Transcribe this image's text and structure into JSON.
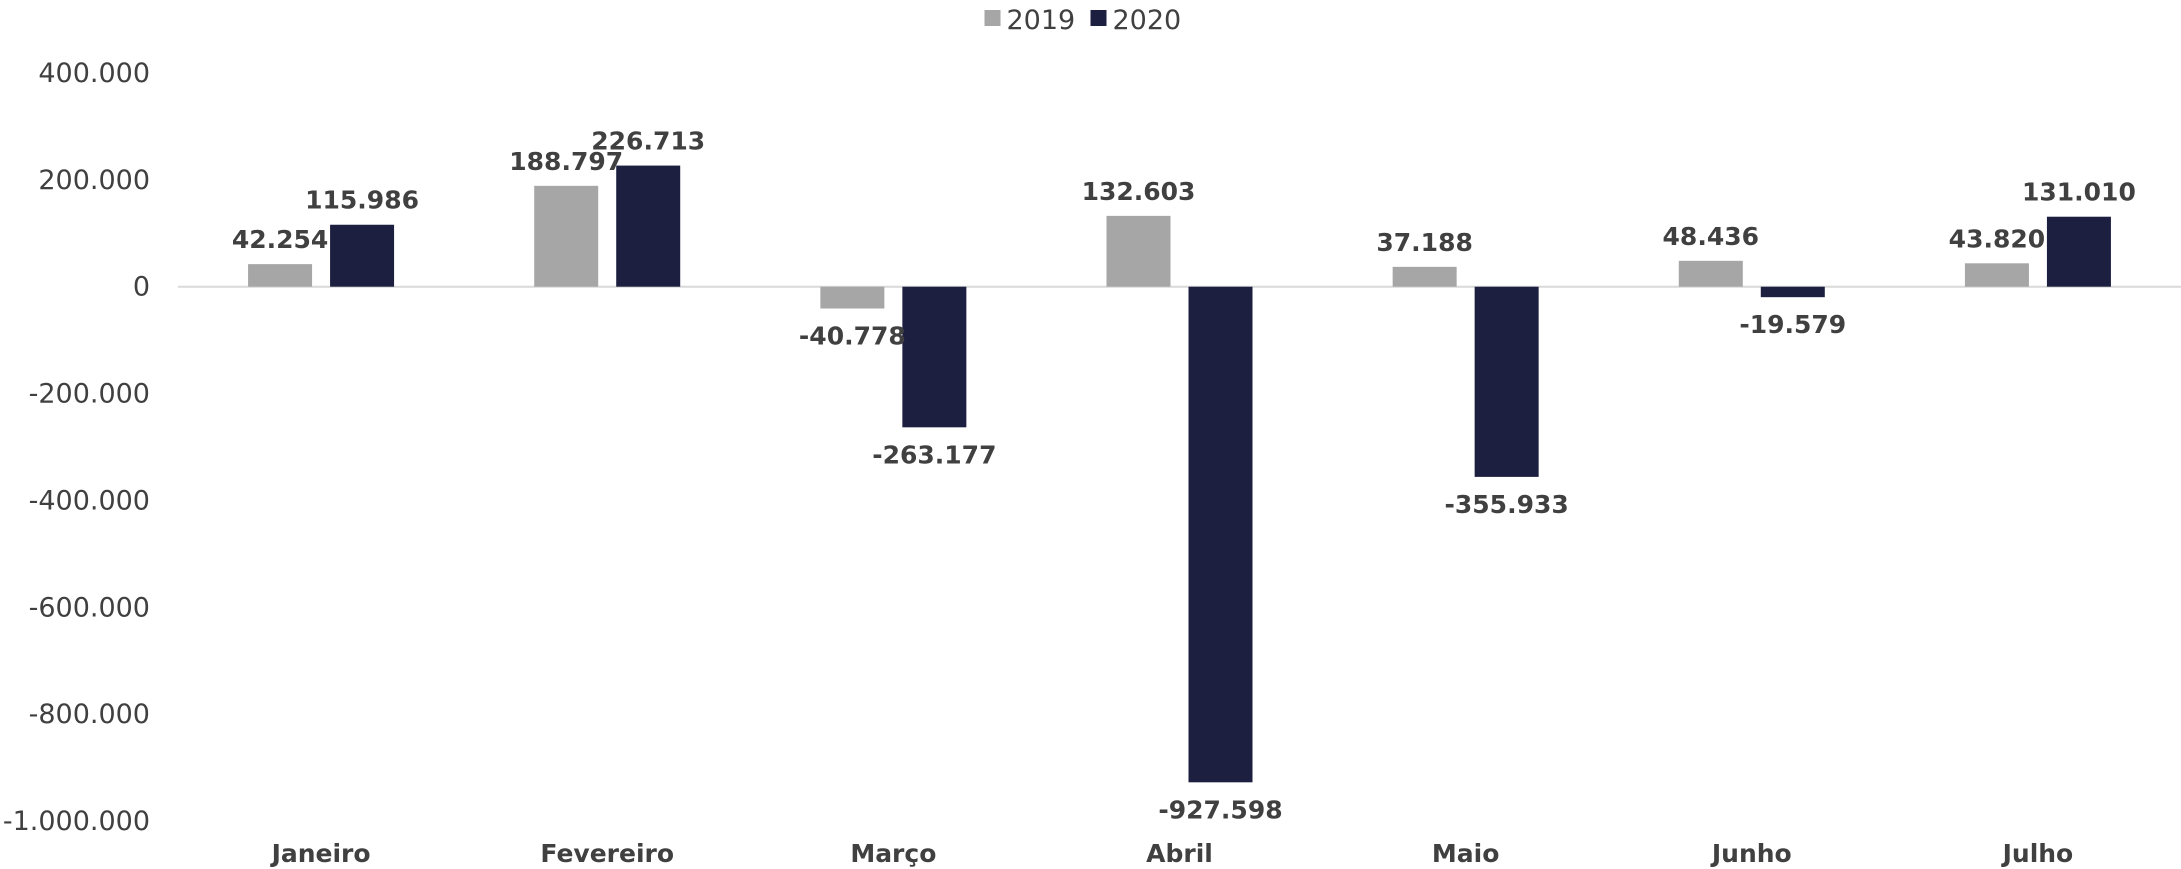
{
  "chart_data": {
    "type": "bar",
    "categories": [
      "Janeiro",
      "Fevereiro",
      "Março",
      "Abril",
      "Maio",
      "Junho",
      "Julho"
    ],
    "series": [
      {
        "name": "2019",
        "color": "#a6a6a6",
        "values": [
          42254,
          188797,
          -40778,
          132603,
          37188,
          48436,
          43820
        ],
        "labels": [
          "42.254",
          "188.797",
          "-40.778",
          "132.603",
          "37.188",
          "48.436",
          "43.820"
        ]
      },
      {
        "name": "2020",
        "color": "#1c1f40",
        "values": [
          115986,
          226713,
          -263177,
          -927598,
          -355933,
          -19579,
          131010
        ],
        "labels": [
          "115.986",
          "226.713",
          "-263.177",
          "-927.598",
          "-355.933",
          "-19.579",
          "131.010"
        ]
      }
    ],
    "ylim": [
      -1000000,
      400000
    ],
    "yticks": [
      400000,
      200000,
      0,
      -200000,
      -400000,
      -600000,
      -800000,
      -1000000
    ],
    "ytick_labels": [
      "400.000",
      "200.000",
      "0",
      "-200.000",
      "-400.000",
      "-600.000",
      "-800.000",
      "-1.000.000"
    ],
    "legend_position": "top-center",
    "grid": false,
    "zero_line_color": "#d9d9d9"
  }
}
